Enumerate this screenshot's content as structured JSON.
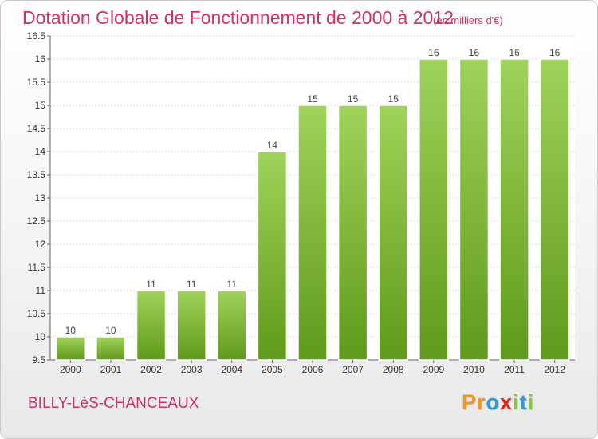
{
  "header": {
    "title": "Dotation Globale de Fonctionnement de 2000 à 2012",
    "unit": "(en milliers d'€)"
  },
  "footer": {
    "commune": "BILLY-LèS-CHANCEAUX",
    "logo_letters": [
      "P",
      "r",
      "o",
      "x",
      "i",
      "t",
      "i"
    ],
    "logo_colors": [
      "#f7941d",
      "#f7941d",
      "#2e9ad6",
      "#e2231a",
      "#8dc63f",
      "#2e9ad6",
      "#8dc63f"
    ]
  },
  "chart_data": {
    "type": "bar",
    "categories": [
      "2000",
      "2001",
      "2002",
      "2003",
      "2004",
      "2005",
      "2006",
      "2007",
      "2008",
      "2009",
      "2010",
      "2011",
      "2012"
    ],
    "values": [
      10,
      10,
      11,
      11,
      11,
      14,
      15,
      15,
      15,
      16,
      16,
      16,
      16
    ],
    "data_labels": [
      "10",
      "10",
      "11",
      "11",
      "11",
      "14",
      "15",
      "15",
      "15",
      "16",
      "16",
      "16",
      "16"
    ],
    "title": "Dotation Globale de Fonctionnement de 2000 à 2012",
    "ylim": [
      9.5,
      16.5
    ],
    "yticks": [
      9.5,
      10,
      10.5,
      11,
      11.5,
      12,
      12.5,
      13,
      13.5,
      14,
      14.5,
      15,
      15.5,
      16,
      16.5
    ],
    "ytick_labels": [
      "9.5",
      "10",
      "10.5",
      "11",
      "11.5",
      "12",
      "12.5",
      "13",
      "13.5",
      "14",
      "14.5",
      "15",
      "15.5",
      "16",
      "16.5"
    ],
    "grid": true,
    "bar_color_top": "#9fd35a",
    "bar_color_bottom": "#5f9a1a"
  }
}
